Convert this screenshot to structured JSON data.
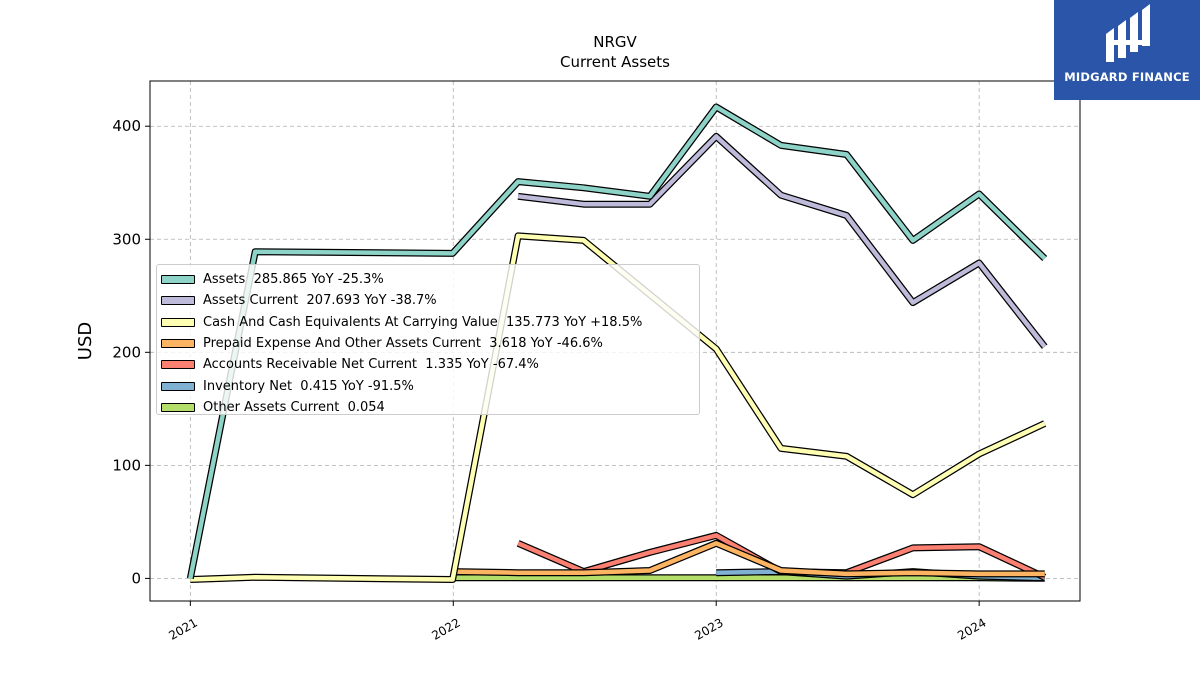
{
  "header": {
    "title": "NRGV",
    "subtitle": "Current  Assets"
  },
  "logo": {
    "text": "MIDGARD FINANCE",
    "background": "#2b55a8"
  },
  "chart_data": {
    "type": "line",
    "ylabel": "USD",
    "ylim": [
      -20,
      440
    ],
    "yticks": [
      0,
      100,
      200,
      300,
      400
    ],
    "xlim": [
      "2020-11-06",
      "2024-05-20"
    ],
    "xticks": [
      {
        "date": "2021-01-01",
        "label": "2021"
      },
      {
        "date": "2022-01-01",
        "label": "2022"
      },
      {
        "date": "2023-01-01",
        "label": "2023"
      },
      {
        "date": "2024-01-01",
        "label": "2024"
      }
    ],
    "grid": true,
    "legend": "center-left",
    "series": [
      {
        "name": "Assets",
        "legend_label": "Assets  285.865 YoY -25.3%",
        "color": "#8dd3c7",
        "points": [
          [
            "2021-01-01",
            0
          ],
          [
            "2021-04-01",
            289
          ],
          [
            "2021-12-31",
            287.5
          ],
          [
            "2022-04-01",
            351
          ],
          [
            "2022-07-01",
            345.5
          ],
          [
            "2022-10-01",
            338
          ],
          [
            "2023-01-01",
            417
          ],
          [
            "2023-04-01",
            383
          ],
          [
            "2023-07-01",
            375
          ],
          [
            "2023-10-01",
            299
          ],
          [
            "2024-01-01",
            340
          ],
          [
            "2024-04-01",
            283
          ]
        ]
      },
      {
        "name": "Assets Current",
        "legend_label": "Assets Current  207.693 YoY -38.7%",
        "color": "#bebada",
        "points": [
          [
            "2022-04-01",
            338
          ],
          [
            "2022-07-01",
            331
          ],
          [
            "2022-10-01",
            331
          ],
          [
            "2023-01-01",
            391
          ],
          [
            "2023-04-01",
            339
          ],
          [
            "2023-07-01",
            321
          ],
          [
            "2023-10-01",
            244
          ],
          [
            "2024-01-01",
            279
          ],
          [
            "2024-04-01",
            205
          ]
        ]
      },
      {
        "name": "Cash And Cash Equivalents At Carrying Value",
        "legend_label": "Cash And Cash Equivalents At Carrying Value  135.773 YoY +18.5%",
        "color": "#ffffb3",
        "points": [
          [
            "2021-01-01",
            -1
          ],
          [
            "2021-04-01",
            1
          ],
          [
            "2021-12-31",
            -1
          ],
          [
            "2022-04-01",
            303
          ],
          [
            "2022-07-01",
            299
          ],
          [
            "2023-01-01",
            203
          ],
          [
            "2023-04-01",
            115
          ],
          [
            "2023-07-01",
            108
          ],
          [
            "2023-10-01",
            74
          ],
          [
            "2024-01-01",
            110
          ],
          [
            "2024-04-01",
            137
          ]
        ]
      },
      {
        "name": "Prepaid Expense And Other Assets Current",
        "legend_label": "Prepaid Expense And Other Assets Current  3.618 YoY -46.6%",
        "color": "#fdb462",
        "points": [
          [
            "2021-12-31",
            6
          ],
          [
            "2022-04-01",
            5
          ],
          [
            "2022-07-01",
            5
          ],
          [
            "2022-10-01",
            7
          ],
          [
            "2023-01-01",
            31
          ],
          [
            "2023-04-01",
            7
          ],
          [
            "2023-07-01",
            4
          ],
          [
            "2023-10-01",
            5
          ],
          [
            "2024-01-01",
            4
          ],
          [
            "2024-04-01",
            4
          ]
        ]
      },
      {
        "name": "Accounts Receivable Net Current",
        "legend_label": "Accounts Receivable Net Current  1.335 YoY -67.4%",
        "color": "#fb8072",
        "points": [
          [
            "2022-04-01",
            31
          ],
          [
            "2022-07-01",
            6
          ],
          [
            "2022-10-01",
            23
          ],
          [
            "2023-01-01",
            38
          ],
          [
            "2023-04-01",
            6
          ],
          [
            "2023-07-01",
            5
          ],
          [
            "2023-10-01",
            27
          ],
          [
            "2024-01-01",
            28
          ],
          [
            "2024-04-01",
            1
          ]
        ]
      },
      {
        "name": "Inventory Net",
        "legend_label": "Inventory Net  0.415 YoY -91.5%",
        "color": "#80b1d3",
        "points": [
          [
            "2023-01-01",
            5
          ],
          [
            "2023-04-01",
            6
          ],
          [
            "2023-07-01",
            2
          ],
          [
            "2023-10-01",
            6
          ],
          [
            "2024-01-01",
            2
          ],
          [
            "2024-04-01",
            0.4
          ]
        ]
      },
      {
        "name": "Other Assets Current",
        "legend_label": "Other Assets Current  0.054",
        "color": "#b3de69",
        "points": [
          [
            "2021-12-31",
            0.5
          ],
          [
            "2022-04-01",
            0.5
          ],
          [
            "2022-07-01",
            0.5
          ],
          [
            "2022-10-01",
            0.5
          ],
          [
            "2023-01-01",
            0.5
          ],
          [
            "2023-04-01",
            0.5
          ],
          [
            "2023-07-01",
            0.5
          ],
          [
            "2023-10-01",
            0.5
          ],
          [
            "2024-01-01",
            0.5
          ],
          [
            "2024-04-01",
            0.05
          ]
        ]
      }
    ]
  }
}
